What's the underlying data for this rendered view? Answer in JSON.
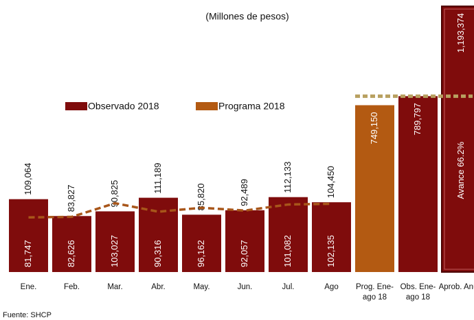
{
  "chart_data": {
    "type": "bar",
    "subtitle": "(Millones de pesos)",
    "categories": [
      "Ene.",
      "Feb.",
      "Mar.",
      "Abr.",
      "May.",
      "Jun.",
      "Jul.",
      "Ago"
    ],
    "series": [
      {
        "name": "Observado 2018",
        "type": "bar",
        "color": "#7f0c0c",
        "values": [
          109064,
          83827,
          90825,
          111189,
          85820,
          92489,
          112133,
          104450
        ],
        "value_labels": [
          "109,064",
          "83,827",
          "90,825",
          "111,189",
          "85,820",
          "92,489",
          "112,133",
          "104,450"
        ]
      },
      {
        "name": "Programa 2018",
        "type": "line",
        "color": "#a8561a",
        "values": [
          81747,
          82626,
          103027,
          90316,
          96162,
          92057,
          101082,
          102135
        ],
        "value_labels": [
          "81,747",
          "82,626",
          "103,027",
          "90,316",
          "96,162",
          "92,057",
          "101,082",
          "102,135"
        ]
      }
    ],
    "totals": {
      "categories": [
        "Prog. Ene-ago 18",
        "Obs. Ene-ago 18",
        "Aprob. Anual"
      ],
      "values": [
        749150,
        789797,
        1193374
      ],
      "value_labels": [
        "749,150",
        "789,797",
        "1,193,374"
      ],
      "colors": [
        "#b35a12",
        "#7f0c0c",
        "#7f0c0c"
      ],
      "axis": "y2"
    },
    "ylim": [
      0,
      400000
    ],
    "y2lim": [
      0,
      1200000
    ],
    "annotation": "Avance 66.2%",
    "source": "Fuente: SHCP",
    "legend": "top"
  }
}
